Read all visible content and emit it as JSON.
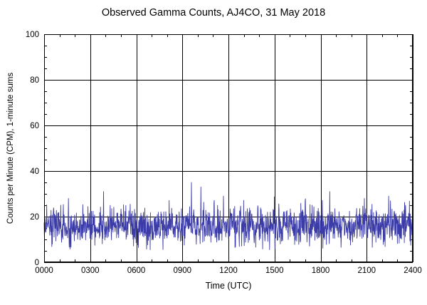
{
  "chart_data": {
    "type": "line",
    "title": "Observed Gamma Counts, AJ4CO, 31 May 2018",
    "xlabel": "Time (UTC)",
    "ylabel": "Counts per Minute (CPM), 1-minute sums",
    "xlim": [
      0,
      1440
    ],
    "ylim": [
      0,
      100
    ],
    "x_ticks": [
      {
        "t": 0,
        "label": "0000"
      },
      {
        "t": 180,
        "label": "0300"
      },
      {
        "t": 360,
        "label": "0600"
      },
      {
        "t": 540,
        "label": "0900"
      },
      {
        "t": 720,
        "label": "1200"
      },
      {
        "t": 900,
        "label": "1500"
      },
      {
        "t": 1080,
        "label": "1800"
      },
      {
        "t": 1440,
        "label": "2400"
      },
      {
        "t": 1260,
        "label": "2100"
      }
    ],
    "y_ticks": [
      0,
      20,
      40,
      60,
      80,
      100
    ],
    "x_minor_step_minutes": 60,
    "y_minor_step": 5,
    "grid": true,
    "grid_color": "#000000",
    "line_color": "#3c3ca8",
    "series": [
      {
        "name": "gamma-counts-1min-sums",
        "points_per_day": 1440,
        "baseline_mean": 16,
        "noise_std": 4.2,
        "typical_min": 7,
        "typical_max": 27,
        "seed": 20180531,
        "spikes": [
          {
            "t": 95,
            "v": 28
          },
          {
            "t": 232,
            "v": 31
          },
          {
            "t": 575,
            "v": 35
          },
          {
            "t": 612,
            "v": 33
          },
          {
            "t": 700,
            "v": 29
          },
          {
            "t": 1115,
            "v": 31
          },
          {
            "t": 1250,
            "v": 28
          },
          {
            "t": 1345,
            "v": 29
          }
        ]
      }
    ]
  },
  "layout_text": {
    "note": ""
  }
}
